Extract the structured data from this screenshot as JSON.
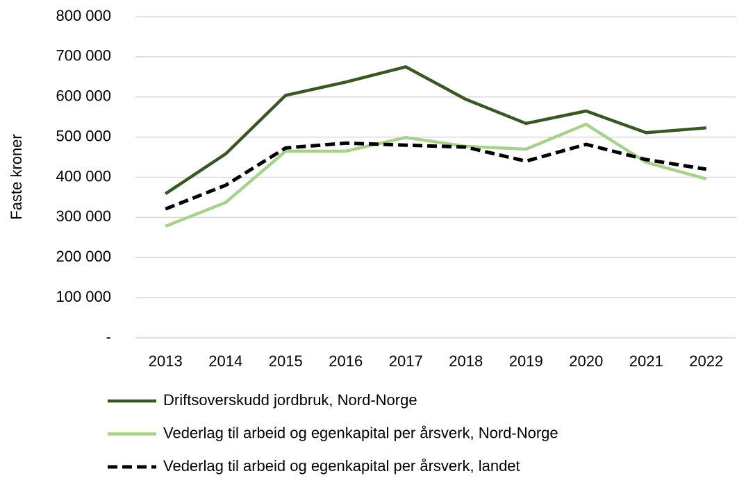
{
  "chart_data": {
    "type": "line",
    "y_label": "Faste kroner",
    "categories": [
      "2013",
      "2014",
      "2015",
      "2016",
      "2017",
      "2018",
      "2019",
      "2020",
      "2021",
      "2022"
    ],
    "series": [
      {
        "name": "Driftsoverskudd jordbruk, Nord-Norge",
        "color": "#385723",
        "dash": false,
        "values": [
          359000,
          458000,
          604000,
          637000,
          675000,
          594000,
          534000,
          565000,
          511000,
          523000
        ]
      },
      {
        "name": "Vederlag til arbeid og egenkapital per årsverk, Nord-Norge",
        "color": "#a9d18e",
        "dash": false,
        "values": [
          278000,
          337000,
          465000,
          465000,
          499000,
          477000,
          470000,
          532000,
          437000,
          396000
        ]
      },
      {
        "name": "Vederlag til arbeid og egenkapital per årsverk, landet",
        "color": "#000000",
        "dash": true,
        "values": [
          321000,
          380000,
          473000,
          485000,
          480000,
          475000,
          440000,
          482000,
          444000,
          420000
        ]
      }
    ],
    "ylim": [
      0,
      800000
    ],
    "yticks": [
      {
        "value": 0,
        "label": "-"
      },
      {
        "value": 100000,
        "label": "100 000"
      },
      {
        "value": 200000,
        "label": "200 000"
      },
      {
        "value": 300000,
        "label": "300 000"
      },
      {
        "value": 400000,
        "label": "400 000"
      },
      {
        "value": 500000,
        "label": "500 000"
      },
      {
        "value": 600000,
        "label": "600 000"
      },
      {
        "value": 700000,
        "label": "700 000"
      },
      {
        "value": 800000,
        "label": "800 000"
      }
    ],
    "grid": true,
    "legend": "bottom"
  }
}
